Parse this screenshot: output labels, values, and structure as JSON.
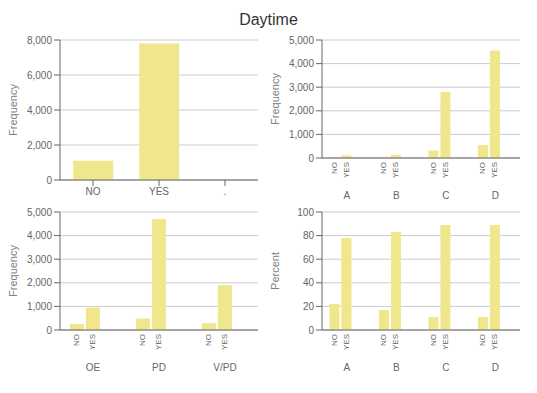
{
  "title": "Daytime",
  "chart_data": [
    {
      "type": "bar",
      "ylabel": "Frequency",
      "categories": [
        "NO",
        "YES",
        "."
      ],
      "values": [
        1100,
        7800,
        0
      ],
      "color": "#f0e68c",
      "ylim": [
        0,
        8000
      ],
      "yticks": [
        0,
        {
          "value": 2000,
          "label": "2,000"
        },
        {
          "value": 4000,
          "label": "4,000"
        },
        {
          "value": 6000,
          "label": "6,000"
        },
        {
          "value": 8000,
          "label": "8,000"
        }
      ],
      "grid": true
    },
    {
      "type": "bar",
      "ylabel": "Frequency",
      "categories": [
        "A",
        "B",
        "C",
        "D"
      ],
      "series": [
        {
          "name": "NO",
          "color": "#f0e68c",
          "values": [
            40,
            50,
            320,
            550
          ]
        },
        {
          "name": "YES",
          "color": "#f0e68c",
          "values": [
            110,
            130,
            2800,
            4550
          ]
        },
        {
          "name": ".",
          "color": "#f0e68c",
          "values": [
            0,
            0,
            0,
            0
          ]
        }
      ],
      "ylim": [
        0,
        5000
      ],
      "yticks": [
        0,
        {
          "value": 1000,
          "label": "1,000"
        },
        {
          "value": 2000,
          "label": "2,000"
        },
        {
          "value": 3000,
          "label": "3,000"
        },
        {
          "value": 4000,
          "label": "4,000"
        },
        {
          "value": 5000,
          "label": "5,000"
        }
      ],
      "grid": true
    },
    {
      "type": "bar",
      "ylabel": "Frequency",
      "categories": [
        "OE",
        "PD",
        "V/PD"
      ],
      "series": [
        {
          "name": "NO",
          "color": "#f0e68c",
          "values": [
            250,
            480,
            290
          ]
        },
        {
          "name": "YES",
          "color": "#f0e68c",
          "values": [
            950,
            4700,
            1900
          ]
        },
        {
          "name": ".",
          "color": "#f0e68c",
          "values": [
            0,
            0,
            0
          ]
        }
      ],
      "ylim": [
        0,
        5000
      ],
      "yticks": [
        0,
        {
          "value": 1000,
          "label": "1,000"
        },
        {
          "value": 2000,
          "label": "2,000"
        },
        {
          "value": 3000,
          "label": "3,000"
        },
        {
          "value": 4000,
          "label": "4,000"
        },
        {
          "value": 5000,
          "label": "5,000"
        }
      ],
      "grid": true
    },
    {
      "type": "bar",
      "ylabel": "Percent",
      "categories": [
        "A",
        "B",
        "C",
        "D"
      ],
      "series": [
        {
          "name": "NO",
          "color": "#f0e68c",
          "values": [
            22,
            17,
            11,
            11
          ]
        },
        {
          "name": "YES",
          "color": "#f0e68c",
          "values": [
            78,
            83,
            89,
            89
          ]
        },
        {
          "name": ".",
          "color": "#f0e68c",
          "values": [
            0,
            0,
            0,
            0
          ]
        }
      ],
      "ylim": [
        0,
        100
      ],
      "yticks": [
        0,
        20,
        40,
        60,
        80,
        100
      ],
      "grid": true
    }
  ]
}
